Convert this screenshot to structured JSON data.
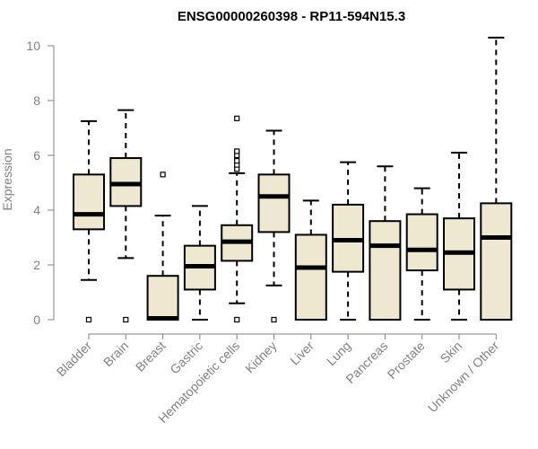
{
  "chart_data": {
    "type": "box",
    "title": "ENSG00000260398 - RP11-594N15.3",
    "xlabel": "",
    "ylabel": "Expression",
    "ylim": [
      0,
      10.4
    ],
    "yticks": [
      0,
      2,
      4,
      6,
      8,
      10
    ],
    "box_fill": "#efe8d0",
    "categories": [
      "Bladder",
      "Brain",
      "Breast",
      "Gastric",
      "Hematopoietic cells",
      "Kidney",
      "Liver",
      "Lung",
      "Pancreas",
      "Prostate",
      "Skin",
      "Unknown / Other"
    ],
    "boxes": [
      {
        "category": "Bladder",
        "whisker_low": 1.45,
        "q1": 3.3,
        "median": 3.85,
        "q3": 5.3,
        "whisker_high": 7.25,
        "outliers": [
          0
        ]
      },
      {
        "category": "Brain",
        "whisker_low": 2.25,
        "q1": 4.15,
        "median": 4.95,
        "q3": 5.9,
        "whisker_high": 7.65,
        "outliers": [
          0
        ]
      },
      {
        "category": "Breast",
        "whisker_low": 0,
        "q1": 0,
        "median": 0.05,
        "q3": 1.6,
        "whisker_high": 3.8,
        "outliers": [
          5.3
        ]
      },
      {
        "category": "Gastric",
        "whisker_low": 0,
        "q1": 1.1,
        "median": 1.95,
        "q3": 2.7,
        "whisker_high": 4.15,
        "outliers": []
      },
      {
        "category": "Hematopoietic cells",
        "whisker_low": 0.6,
        "q1": 2.15,
        "median": 2.85,
        "q3": 3.45,
        "whisker_high": 5.35,
        "outliers": [
          0,
          5.5,
          5.65,
          5.8,
          6.0,
          6.15,
          7.35
        ]
      },
      {
        "category": "Kidney",
        "whisker_low": 1.25,
        "q1": 3.2,
        "median": 4.5,
        "q3": 5.3,
        "whisker_high": 6.9,
        "outliers": [
          0
        ]
      },
      {
        "category": "Liver",
        "whisker_low": 0,
        "q1": 0,
        "median": 1.9,
        "q3": 3.1,
        "whisker_high": 4.35,
        "outliers": []
      },
      {
        "category": "Lung",
        "whisker_low": 0,
        "q1": 1.75,
        "median": 2.9,
        "q3": 4.2,
        "whisker_high": 5.75,
        "outliers": []
      },
      {
        "category": "Pancreas",
        "whisker_low": 0,
        "q1": 0,
        "median": 2.7,
        "q3": 3.6,
        "whisker_high": 5.6,
        "outliers": []
      },
      {
        "category": "Prostate",
        "whisker_low": 0,
        "q1": 1.8,
        "median": 2.55,
        "q3": 3.85,
        "whisker_high": 4.8,
        "outliers": []
      },
      {
        "category": "Skin",
        "whisker_low": 0,
        "q1": 1.1,
        "median": 2.45,
        "q3": 3.7,
        "whisker_high": 6.1,
        "outliers": []
      },
      {
        "category": "Unknown / Other",
        "whisker_low": 0,
        "q1": 0,
        "median": 3.0,
        "q3": 4.25,
        "whisker_high": 10.3,
        "outliers": []
      }
    ]
  }
}
